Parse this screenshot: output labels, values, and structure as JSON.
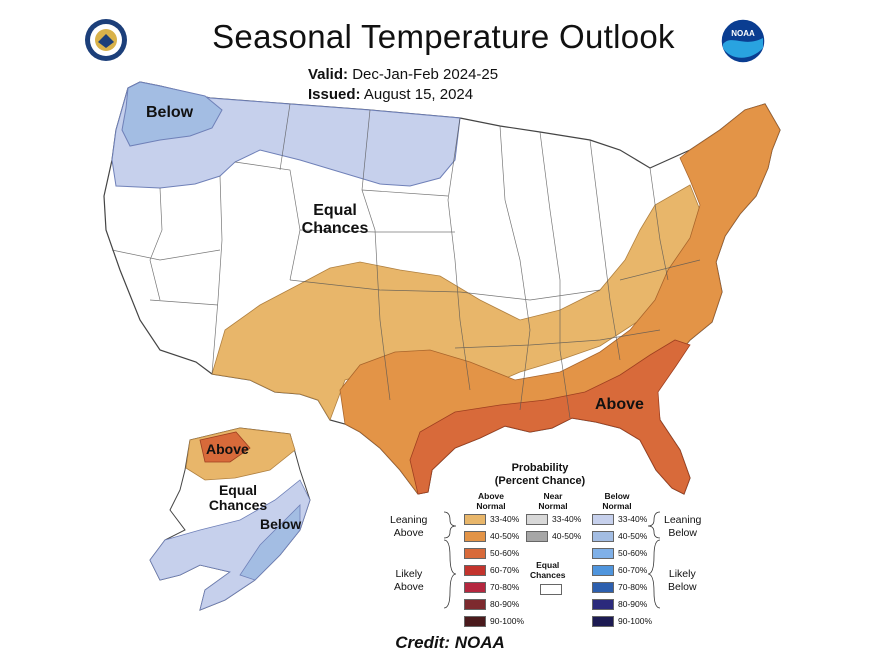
{
  "title": "Seasonal Temperature Outlook",
  "valid_label": "Valid:",
  "valid_value": "Dec-Jan-Feb 2024-25",
  "issued_label": "Issued:",
  "issued_value": "August 15, 2024",
  "map_labels": {
    "below_nw": "Below",
    "equal_chances_line1": "Equal",
    "equal_chances_line2": "Chances",
    "above_se": "Above",
    "ak_above": "Above",
    "ak_equal_line1": "Equal",
    "ak_equal_line2": "Chances",
    "ak_below": "Below"
  },
  "legend": {
    "title_line1": "Probability",
    "title_line2": "(Percent Chance)",
    "above_header_1": "Above",
    "above_header_2": "Normal",
    "near_header_1": "Near",
    "near_header_2": "Normal",
    "below_header_1": "Below",
    "below_header_2": "Normal",
    "leaning_above_1": "Leaning",
    "leaning_above_2": "Above",
    "likely_above_1": "Likely",
    "likely_above_2": "Above",
    "leaning_below_1": "Leaning",
    "leaning_below_2": "Below",
    "likely_below_1": "Likely",
    "likely_below_2": "Below",
    "equal_1": "Equal",
    "equal_2": "Chances",
    "above_bins": [
      {
        "label": "33-40%",
        "color": "#e8b66a"
      },
      {
        "label": "40-50%",
        "color": "#e39447"
      },
      {
        "label": "50-60%",
        "color": "#d86a3a"
      },
      {
        "label": "60-70%",
        "color": "#c3342d"
      },
      {
        "label": "70-80%",
        "color": "#b5273f"
      },
      {
        "label": "80-90%",
        "color": "#7d2a2e"
      },
      {
        "label": "90-100%",
        "color": "#4a1a1c"
      }
    ],
    "near_bins": [
      {
        "label": "33-40%",
        "color": "#d8d8d8"
      },
      {
        "label": "40-50%",
        "color": "#a6a6a6"
      }
    ],
    "below_bins": [
      {
        "label": "33-40%",
        "color": "#c6d0ec"
      },
      {
        "label": "40-50%",
        "color": "#a3bde3"
      },
      {
        "label": "50-60%",
        "color": "#7fb0e8"
      },
      {
        "label": "60-70%",
        "color": "#4f95dd"
      },
      {
        "label": "70-80%",
        "color": "#2d5fae"
      },
      {
        "label": "80-90%",
        "color": "#2b2a7c"
      },
      {
        "label": "90-100%",
        "color": "#1c1a52"
      }
    ]
  },
  "credit": "Credit: NOAA",
  "icons": {
    "seal": "department-of-commerce-seal",
    "noaa": "noaa-logo"
  }
}
